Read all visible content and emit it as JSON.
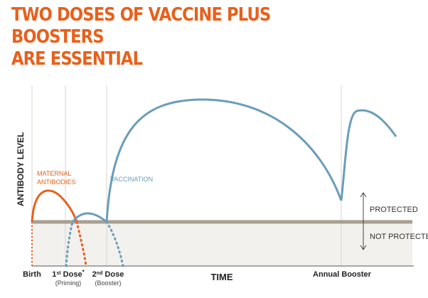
{
  "title": {
    "line1": "TWO DOSES OF VACCINE PLUS BOOSTERS",
    "line2": "ARE ESSENTIAL",
    "color": "#e8601c"
  },
  "chart_data": {
    "type": "line",
    "xlabel": "TIME",
    "ylabel": "ANTIBODY LEVEL",
    "milestones": [
      {
        "label": "Birth",
        "sublabel": ""
      },
      {
        "label": "1st Dose*",
        "sublabel": "(Priming)"
      },
      {
        "label": "2nd Dose",
        "sublabel": "(Booster)"
      },
      {
        "label": "Annual Booster",
        "sublabel": ""
      }
    ],
    "zones": {
      "upper": "PROTECTED",
      "lower": "NOT PROTECTED"
    },
    "series": [
      {
        "name": "MATERNAL ANTIBODIES",
        "color": "#e8601c"
      },
      {
        "name": "VACCINATION",
        "color": "#6a9db8"
      }
    ],
    "threshold_color": "#a89f91",
    "zone_color": "#f3f1ee",
    "grid": false
  }
}
